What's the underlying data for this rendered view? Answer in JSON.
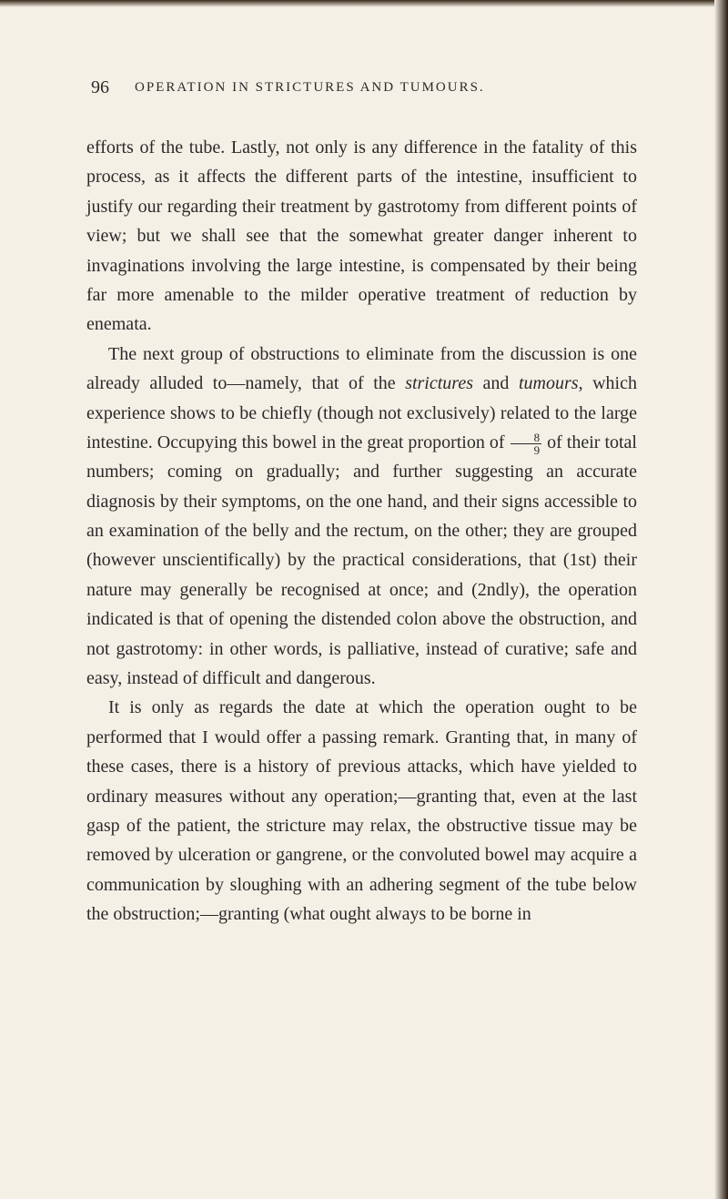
{
  "page_number": "96",
  "running_header": "OPERATION IN STRICTURES AND TUMOURS.",
  "colors": {
    "background": "#f5f0e6",
    "text": "#2a2a2a",
    "edge_dark": "#2a1a0f"
  },
  "typography": {
    "body_font_size": 20,
    "body_line_height": 1.62,
    "header_font_size": 15,
    "header_letter_spacing": 2,
    "page_num_font_size": 20
  },
  "paragraphs": {
    "p1": "efforts of the tube. Lastly, not only is any difference in the fatality of this process, as it affects the different parts of the intestine, insufficient to justify our regarding their treatment by gastrotomy from different points of view; but we shall see that the somewhat greater danger inherent to invaginations involving the large intestine, is compensated by their being far more amenable to the milder operative treatment of reduction by enemata.",
    "p2_part1": "The next group of obstructions to eliminate from the discussion is one already alluded to—namely, that of the ",
    "p2_italic1": "strictures",
    "p2_part2": " and ",
    "p2_italic2": "tumours",
    "p2_part3": ", which experience shows to be chiefly (though not exclusively) related to the large intestine. Occupying this bowel in the great proportion of ",
    "p2_frac_num": "8",
    "p2_frac_den": "9",
    "p2_part4": " of their total numbers; coming on gradually; and further suggesting an accurate diagnosis by their symptoms, on the one hand, and their signs accessible to an examination of the belly and the rectum, on the other; they are grouped (however unscientifically) by the practical considerations, that (1st) their nature may generally be recognised at once; and (2ndly), the operation indicated is that of opening the distended colon above the obstruction, and not gastrotomy: in other words, is palliative, instead of curative; safe and easy, instead of difficult and dangerous.",
    "p3": "It is only as regards the date at which the operation ought to be performed that I would offer a passing remark. Granting that, in many of these cases, there is a history of previous attacks, which have yielded to ordinary measures without any operation;—granting that, even at the last gasp of the patient, the stricture may relax, the obstructive tissue may be removed by ulceration or gangrene, or the convoluted bowel may acquire a communication by sloughing with an adhering segment of the tube below the obstruction;—granting (what ought always to be borne in"
  }
}
